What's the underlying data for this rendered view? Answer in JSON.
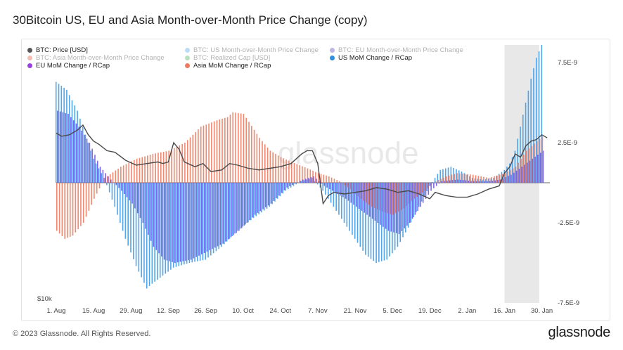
{
  "title": "30Bitcoin US, EU and Asia Month-over-Month Price Change (copy)",
  "footer": {
    "copyright": "© 2023 Glassnode. All Rights Reserved.",
    "brand": "glassnode"
  },
  "watermark": "glassnode",
  "legend": [
    {
      "label": "BTC: Price [USD]",
      "color": "#555555",
      "muted": false
    },
    {
      "label": "BTC: US Month-over-Month Price Change",
      "color": "#3d9be9",
      "muted": true
    },
    {
      "label": "BTC: EU Month-over-Month Price Change",
      "color": "#4b2bb0",
      "muted": true
    },
    {
      "label": "BTC: Asia Month-over-Month Price Change",
      "color": "#e0442a",
      "muted": true
    },
    {
      "label": "BTC: Realized Cap [USD]",
      "color": "#3aa84a",
      "muted": true
    },
    {
      "label": "US MoM Change / RCap",
      "color": "#2f90e0",
      "muted": false
    },
    {
      "label": "EU MoM Change / RCap",
      "color": "#9b3fe0",
      "muted": false
    },
    {
      "label": "Asia MoM Change / RCap",
      "color": "#ef7a5e",
      "muted": false
    }
  ],
  "colors": {
    "us": "#3d9be9",
    "eu": "#6f58e8",
    "asia": "#ef7a5e",
    "price": "#4a4a4a"
  },
  "chart_data": {
    "type": "bar",
    "x_ticks": [
      "1. Aug",
      "15. Aug",
      "29. Aug",
      "12. Sep",
      "26. Sep",
      "10. Oct",
      "24. Oct",
      "7. Nov",
      "21. Nov",
      "5. Dec",
      "19. Dec",
      "2. Jan",
      "16. Jan",
      "30. Jan"
    ],
    "x_tick_days": [
      0,
      14,
      28,
      42,
      56,
      70,
      84,
      98,
      112,
      126,
      140,
      154,
      168,
      182
    ],
    "x_range_days": [
      0,
      185
    ],
    "forecast_band_days": [
      168,
      181
    ],
    "y_right_ticks": [
      "7.5E-9",
      "2.5E-9",
      "-2.5E-9",
      "-7.5E-9"
    ],
    "y_right_tick_values": [
      7.5,
      2.5,
      -2.5,
      -7.5
    ],
    "y_right_range": [
      -7.5,
      8.6
    ],
    "y_right_unit": "E-9",
    "y_left_ticks": [
      "$10k"
    ],
    "series": [
      {
        "name": "US MoM Change / RCap",
        "color": "#3d9be9",
        "points": [
          [
            0,
            6.3
          ],
          [
            4,
            5.8
          ],
          [
            8,
            4.5
          ],
          [
            11,
            3.0
          ],
          [
            14,
            1.5
          ],
          [
            18,
            0.3
          ],
          [
            22,
            -1.5
          ],
          [
            26,
            -3.5
          ],
          [
            30,
            -5.2
          ],
          [
            34,
            -6.6
          ],
          [
            36,
            -6.3
          ],
          [
            40,
            -5.8
          ],
          [
            44,
            -5.3
          ],
          [
            50,
            -5.0
          ],
          [
            56,
            -4.8
          ],
          [
            62,
            -4.0
          ],
          [
            68,
            -3.0
          ],
          [
            74,
            -2.2
          ],
          [
            80,
            -1.5
          ],
          [
            86,
            -0.5
          ],
          [
            92,
            0.1
          ],
          [
            96,
            0.3
          ],
          [
            100,
            -0.5
          ],
          [
            104,
            -1.5
          ],
          [
            108,
            -2.5
          ],
          [
            112,
            -3.5
          ],
          [
            116,
            -4.5
          ],
          [
            120,
            -5.0
          ],
          [
            124,
            -4.8
          ],
          [
            128,
            -4.0
          ],
          [
            132,
            -2.8
          ],
          [
            136,
            -1.5
          ],
          [
            140,
            -0.2
          ],
          [
            144,
            0.8
          ],
          [
            148,
            1.0
          ],
          [
            152,
            0.7
          ],
          [
            156,
            0.3
          ],
          [
            160,
            0.2
          ],
          [
            164,
            0.3
          ],
          [
            168,
            0.8
          ],
          [
            170,
            1.2
          ],
          [
            172,
            2.0
          ],
          [
            174,
            3.5
          ],
          [
            176,
            5.0
          ],
          [
            178,
            6.5
          ],
          [
            180,
            7.8
          ],
          [
            182,
            8.6
          ]
        ]
      },
      {
        "name": "EU MoM Change / RCap",
        "color": "#6f58e8",
        "points": [
          [
            0,
            4.5
          ],
          [
            4,
            4.3
          ],
          [
            8,
            3.5
          ],
          [
            12,
            2.5
          ],
          [
            16,
            1.0
          ],
          [
            20,
            0.2
          ],
          [
            24,
            -0.5
          ],
          [
            28,
            -1.3
          ],
          [
            32,
            -2.5
          ],
          [
            36,
            -4.0
          ],
          [
            40,
            -4.8
          ],
          [
            44,
            -5.0
          ],
          [
            50,
            -4.8
          ],
          [
            56,
            -4.3
          ],
          [
            62,
            -3.8
          ],
          [
            68,
            -3.0
          ],
          [
            74,
            -2.0
          ],
          [
            80,
            -1.3
          ],
          [
            86,
            -0.3
          ],
          [
            92,
            0.2
          ],
          [
            96,
            0.4
          ],
          [
            100,
            -0.2
          ],
          [
            104,
            -0.6
          ],
          [
            108,
            -1.0
          ],
          [
            112,
            -1.5
          ],
          [
            116,
            -2.0
          ],
          [
            120,
            -2.5
          ],
          [
            124,
            -3.0
          ],
          [
            128,
            -3.2
          ],
          [
            132,
            -2.5
          ],
          [
            136,
            -1.5
          ],
          [
            140,
            -0.5
          ],
          [
            144,
            0.1
          ],
          [
            150,
            0.2
          ],
          [
            156,
            0.1
          ],
          [
            162,
            0.1
          ],
          [
            166,
            0.2
          ],
          [
            170,
            0.5
          ],
          [
            174,
            1.0
          ],
          [
            178,
            1.5
          ],
          [
            182,
            2.0
          ]
        ]
      },
      {
        "name": "Asia MoM Change / RCap",
        "color": "#ef7a5e",
        "points": [
          [
            0,
            -3.0
          ],
          [
            3,
            -3.5
          ],
          [
            6,
            -3.3
          ],
          [
            10,
            -2.5
          ],
          [
            14,
            -1.0
          ],
          [
            18,
            0.3
          ],
          [
            24,
            1.0
          ],
          [
            30,
            1.5
          ],
          [
            36,
            1.8
          ],
          [
            42,
            2.0
          ],
          [
            48,
            2.5
          ],
          [
            54,
            3.5
          ],
          [
            60,
            3.9
          ],
          [
            64,
            4.1
          ],
          [
            66,
            4.4
          ],
          [
            70,
            4.3
          ],
          [
            72,
            3.8
          ],
          [
            76,
            2.8
          ],
          [
            80,
            2.0
          ],
          [
            84,
            1.6
          ],
          [
            88,
            1.3
          ],
          [
            94,
            0.9
          ],
          [
            98,
            0.6
          ],
          [
            102,
            0.4
          ],
          [
            106,
            0.1
          ],
          [
            110,
            -0.4
          ],
          [
            114,
            -1.0
          ],
          [
            118,
            -1.5
          ],
          [
            122,
            -1.8
          ],
          [
            126,
            -2.0
          ],
          [
            130,
            -1.6
          ],
          [
            134,
            -1.0
          ],
          [
            138,
            -0.5
          ],
          [
            142,
            0.1
          ],
          [
            146,
            0.4
          ],
          [
            150,
            0.6
          ],
          [
            156,
            0.5
          ],
          [
            162,
            0.3
          ],
          [
            168,
            0.6
          ],
          [
            172,
            1.0
          ],
          [
            176,
            2.0
          ],
          [
            180,
            2.6
          ],
          [
            182,
            2.9
          ]
        ]
      },
      {
        "name": "BTC: Price [USD]",
        "color": "#4a4a4a",
        "axis": "left",
        "points": [
          [
            0,
            3.1
          ],
          [
            2,
            2.9
          ],
          [
            5,
            3.0
          ],
          [
            8,
            3.3
          ],
          [
            10,
            3.6
          ],
          [
            12,
            3.0
          ],
          [
            14,
            2.6
          ],
          [
            16,
            2.4
          ],
          [
            19,
            2.0
          ],
          [
            22,
            1.9
          ],
          [
            26,
            1.4
          ],
          [
            30,
            1.1
          ],
          [
            34,
            1.2
          ],
          [
            38,
            1.3
          ],
          [
            40,
            1.2
          ],
          [
            42,
            1.3
          ],
          [
            44,
            2.5
          ],
          [
            46,
            2.1
          ],
          [
            48,
            1.3
          ],
          [
            52,
            1.0
          ],
          [
            55,
            1.2
          ],
          [
            58,
            0.7
          ],
          [
            62,
            0.8
          ],
          [
            65,
            1.2
          ],
          [
            68,
            1.1
          ],
          [
            72,
            0.9
          ],
          [
            76,
            0.8
          ],
          [
            80,
            0.9
          ],
          [
            84,
            1.0
          ],
          [
            88,
            1.2
          ],
          [
            92,
            1.8
          ],
          [
            94,
            2.0
          ],
          [
            96,
            2.0
          ],
          [
            98,
            1.2
          ],
          [
            100,
            -1.3
          ],
          [
            102,
            -0.8
          ],
          [
            104,
            -0.6
          ],
          [
            108,
            -0.7
          ],
          [
            112,
            -0.6
          ],
          [
            116,
            -0.5
          ],
          [
            120,
            -0.3
          ],
          [
            124,
            -0.4
          ],
          [
            128,
            -0.6
          ],
          [
            132,
            -0.5
          ],
          [
            136,
            -0.7
          ],
          [
            140,
            -1.0
          ],
          [
            142,
            -0.6
          ],
          [
            146,
            -0.8
          ],
          [
            150,
            -0.9
          ],
          [
            154,
            -0.9
          ],
          [
            158,
            -0.7
          ],
          [
            162,
            -0.4
          ],
          [
            166,
            -0.2
          ],
          [
            168,
            0.6
          ],
          [
            170,
            1.0
          ],
          [
            172,
            1.8
          ],
          [
            174,
            1.6
          ],
          [
            176,
            2.3
          ],
          [
            178,
            2.6
          ],
          [
            180,
            2.7
          ],
          [
            182,
            3.0
          ],
          [
            184,
            2.8
          ]
        ]
      }
    ]
  }
}
